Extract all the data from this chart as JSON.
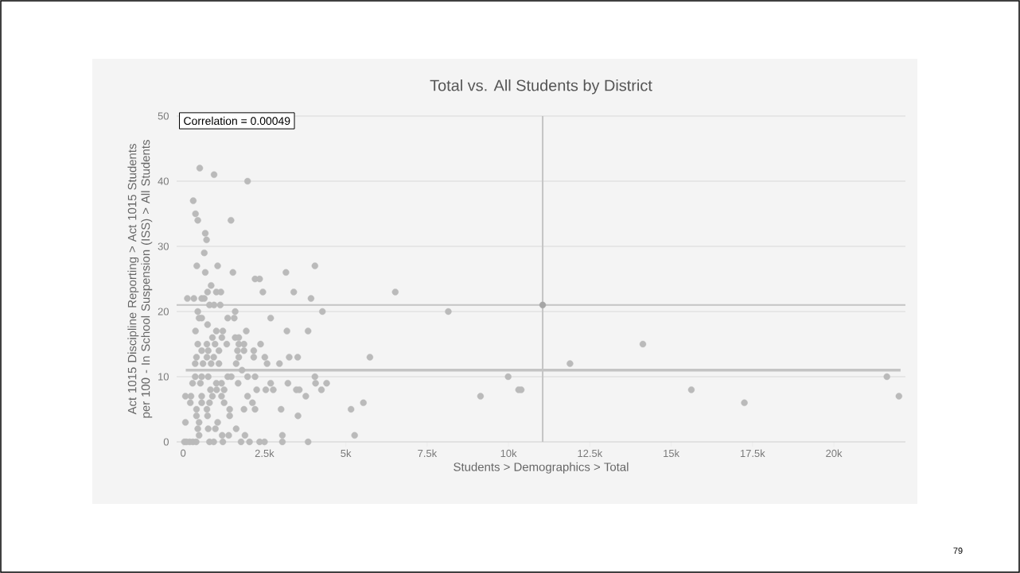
{
  "chart_data": {
    "type": "scatter",
    "title": "Total vs. All Students by District",
    "xlabel": "Students > Demographics > Total",
    "ylabel": "Act 1015 Discipline Reporting > Act 1015 Students per 100 - In School Suspension (ISS) > All Students",
    "annotations": [
      "Correlation = 0.00049",
      "79"
    ],
    "xlim": [
      -200,
      22200
    ],
    "ylim": [
      0,
      50
    ],
    "xticks": [
      0,
      {
        "value": 2500,
        "label": "2.5k"
      },
      {
        "value": 5000,
        "label": "5k"
      },
      {
        "value": 7500,
        "label": "7.5k"
      },
      {
        "value": 10000,
        "label": "10k"
      },
      {
        "value": 12500,
        "label": "12.5k"
      },
      {
        "value": 15000,
        "label": "15k"
      },
      {
        "value": 17500,
        "label": "17.5k"
      },
      {
        "value": 20000,
        "label": "20k"
      }
    ],
    "yticks": [
      0,
      10,
      20,
      30,
      40,
      50
    ],
    "grid": "y",
    "marker": "circle",
    "ref_lines": [
      {
        "axis": "y",
        "value": 21,
        "color": "#c4c4c4"
      },
      {
        "axis": "x",
        "value": 11050,
        "color": "#c4c4c4"
      }
    ],
    "series": [
      {
        "color": "#bababa",
        "x": [
          510,
          950,
          1980,
          310,
          380,
          450,
          1470,
          680,
          720,
          650,
          420,
          1060,
          4050,
          680,
          1530,
          3160,
          2210,
          2350,
          860,
          750,
          1020,
          1160,
          2450,
          3400,
          6520,
          130,
          330,
          570,
          650,
          3930,
          810,
          950,
          1140,
          450,
          1600,
          4280,
          8150,
          490,
          570,
          1370,
          1570,
          2690,
          750,
          380,
          1020,
          1220,
          1940,
          3190,
          3840,
          900,
          1190,
          1600,
          1710,
          450,
          730,
          980,
          1340,
          1710,
          1870,
          2380,
          14130,
          570,
          770,
          1100,
          1670,
          1870,
          2170,
          410,
          730,
          940,
          1710,
          2170,
          2510,
          3260,
          3520,
          5740,
          370,
          610,
          860,
          1100,
          1630,
          2580,
          2960,
          11890,
          1810,
          370,
          570,
          770,
          1370,
          1480,
          1980,
          2210,
          4050,
          9990,
          21630,
          290,
          530,
          1020,
          1180,
          1690,
          2690,
          3220,
          4070,
          4410,
          840,
          1030,
          1260,
          2260,
          2540,
          2770,
          3480,
          3570,
          4250,
          10310,
          10390,
          15620,
          70,
          240,
          570,
          900,
          1180,
          1980,
          3770,
          9140,
          22000,
          220,
          570,
          810,
          1260,
          2130,
          5540,
          17250,
          410,
          730,
          1430,
          1870,
          2210,
          3010,
          5160,
          410,
          750,
          1430,
          3530,
          70,
          490,
          1060,
          450,
          770,
          990,
          1630,
          490,
          1200,
          1400,
          1900,
          3050,
          5270,
          40,
          100,
          200,
          300,
          400,
          810,
          940,
          1220,
          1780,
          2040,
          2350,
          2500,
          3050,
          3840
        ],
        "values": [
          42,
          41,
          40,
          37,
          35,
          34,
          34,
          32,
          31,
          29,
          27,
          27,
          27,
          26,
          26,
          26,
          25,
          25,
          24,
          23,
          23,
          23,
          23,
          23,
          23,
          22,
          22,
          22,
          22,
          22,
          21,
          21,
          21,
          20,
          20,
          20,
          20,
          19,
          19,
          19,
          19,
          19,
          18,
          17,
          17,
          17,
          17,
          17,
          17,
          16,
          16,
          16,
          16,
          15,
          15,
          15,
          15,
          15,
          15,
          15,
          15,
          14,
          14,
          14,
          14,
          14,
          14,
          13,
          13,
          13,
          13,
          13,
          13,
          13,
          13,
          13,
          12,
          12,
          12,
          12,
          12,
          12,
          12,
          12,
          11,
          10,
          10,
          10,
          10,
          10,
          10,
          10,
          10,
          10,
          10,
          9,
          9,
          9,
          9,
          9,
          9,
          9,
          9,
          9,
          8,
          8,
          8,
          8,
          8,
          8,
          8,
          8,
          8,
          8,
          8,
          8,
          7,
          7,
          7,
          7,
          7,
          7,
          7,
          7,
          7,
          6,
          6,
          6,
          6,
          6,
          6,
          6,
          5,
          5,
          5,
          5,
          5,
          5,
          5,
          4,
          4,
          4,
          4,
          3,
          3,
          3,
          2,
          2,
          2,
          2,
          1,
          1,
          1,
          1,
          1,
          1,
          0,
          0,
          0,
          0,
          0,
          0,
          0,
          0,
          0,
          0,
          0,
          0,
          0,
          0
        ]
      },
      {
        "type": "line",
        "marker": "none",
        "color": "#c4c4c4",
        "x": [
          80,
          22050
        ],
        "values": [
          11,
          11
        ]
      },
      {
        "color": "#a6a6a6",
        "x": [
          11050
        ],
        "values": [
          21
        ]
      }
    ]
  }
}
